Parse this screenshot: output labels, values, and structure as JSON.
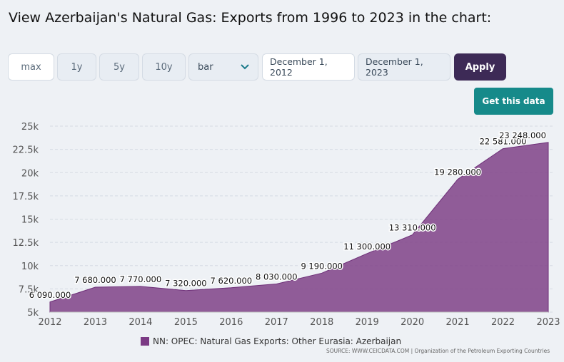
{
  "header": {
    "title": "View Azerbaijan's Natural Gas: Exports from 1996 to 2023 in the chart:"
  },
  "controls": {
    "ranges": [
      "max",
      "1y",
      "5y",
      "10y"
    ],
    "chart_type": "bar",
    "start_date": "December 1, 2012",
    "end_date": "December 1, 2023",
    "apply_label": "Apply",
    "get_data_label": "Get this data",
    "chevron_icon": "chevron-down-icon"
  },
  "colors": {
    "area": "#7b3a84",
    "apply_bg": "#3d2a56",
    "get_data_bg": "#168a8a"
  },
  "chart_data": {
    "type": "area",
    "x": [
      "2012",
      "2013",
      "2014",
      "2015",
      "2016",
      "2017",
      "2018",
      "2019",
      "2020",
      "2021",
      "2022",
      "2023"
    ],
    "series": [
      {
        "name": "NN: OPEC: Natural Gas Exports: Other Eurasia: Azerbaijan",
        "values": [
          6090,
          7680,
          7770,
          7320,
          7620,
          8030,
          9190,
          11300,
          13310,
          19280,
          22581,
          23248
        ]
      }
    ],
    "data_labels": [
      "6 090.000",
      "7 680.000",
      "7 770.000",
      "7 320.000",
      "7 620.000",
      "8 030.000",
      "9 190.000",
      "11 300.000",
      "13 310.000",
      "19 280.000",
      "22 581.000",
      "23 248.000"
    ],
    "ylim": [
      5000,
      25000
    ],
    "yticks": [
      5000,
      7500,
      10000,
      12500,
      15000,
      17500,
      20000,
      22500,
      25000
    ],
    "ytick_labels": [
      "5k",
      "7.5k",
      "10k",
      "12.5k",
      "15k",
      "17.5k",
      "20k",
      "22.5k",
      "25k"
    ],
    "legend": "bottom-center",
    "source": "SOURCE: WWW.CEICDATA.COM | Organization of the Petroleum Exporting Countries"
  }
}
